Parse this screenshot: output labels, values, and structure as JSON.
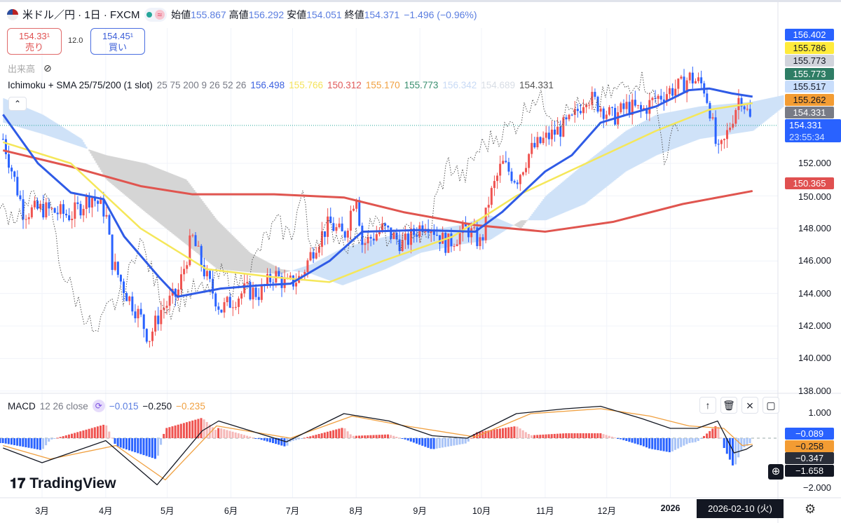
{
  "header": {
    "symbol": "米ドル／円 · 1日 · FXCM",
    "approx_icon": "≈",
    "ohlc": [
      {
        "label": "始値",
        "value": "155.867"
      },
      {
        "label": "高値",
        "value": "156.292"
      },
      {
        "label": "安値",
        "value": "154.051"
      },
      {
        "label": "終値",
        "value": "154.371"
      }
    ],
    "change": "−1.496 (−0.96%)"
  },
  "trade": {
    "sell_price": "154.33¹",
    "sell_label": "売り",
    "spread": "12.0",
    "buy_price": "154.45¹",
    "buy_label": "買い"
  },
  "volume_label": "出来高",
  "indicator": {
    "name": "Ichimoku + SMA 25/75/200 (1 slot)",
    "params": "25 75 200 9 26 52 26",
    "values": [
      {
        "v": "156.498",
        "c": "#3d62e0"
      },
      {
        "v": "155.766",
        "c": "#f5e35a"
      },
      {
        "v": "150.312",
        "c": "#e05a5a"
      },
      {
        "v": "155.170",
        "c": "#f0a040"
      },
      {
        "v": "155.773",
        "c": "#3a8f70"
      },
      {
        "v": "156.342",
        "c": "#c8daf5"
      },
      {
        "v": "154.689",
        "c": "#d8dde5"
      },
      {
        "v": "154.331",
        "c": "#555"
      }
    ]
  },
  "macd": {
    "label": "MACD",
    "params": "12 26 close",
    "values": [
      {
        "v": "−0.015",
        "c": "#5b7ee0"
      },
      {
        "v": "−0.250",
        "c": "#131722"
      },
      {
        "v": "−0.235",
        "c": "#f0a040"
      }
    ],
    "tools": [
      "arrow-up",
      "delete",
      "collapse",
      "maximize"
    ]
  },
  "price_axis": {
    "ticks": [
      "152.000",
      "150.000",
      "148.000",
      "146.000",
      "144.000",
      "142.000",
      "140.000",
      "138.000"
    ],
    "labels": [
      {
        "v": "156.402",
        "bg": "#2962ff",
        "fg": "#fff"
      },
      {
        "v": "155.786",
        "bg": "#ffeb3b",
        "fg": "#131722"
      },
      {
        "v": "155.773",
        "bg": "#d1d4dc",
        "fg": "#131722"
      },
      {
        "v": "155.773",
        "bg": "#2e7d65",
        "fg": "#fff"
      },
      {
        "v": "155.517",
        "bg": "#c8ddfb",
        "fg": "#131722"
      },
      {
        "v": "155.262",
        "bg": "#f39c33",
        "fg": "#131722"
      },
      {
        "v": "154.331",
        "bg": "#787b86",
        "fg": "#fff"
      }
    ],
    "last_price": "154.331",
    "countdown": "23:55:34",
    "sma200_label": "150.365"
  },
  "macd_axis": {
    "ticks": [
      "1.000",
      "−2.000"
    ],
    "labels": [
      {
        "v": "−0.089",
        "bg": "#2962ff",
        "fg": "#fff"
      },
      {
        "v": "−0.258",
        "bg": "#f39c33",
        "fg": "#131722"
      },
      {
        "v": "−0.347",
        "bg": "#2a2e39",
        "fg": "#fff"
      },
      {
        "v": "−1.658",
        "bg": "#131722",
        "fg": "#fff"
      }
    ]
  },
  "time_axis": {
    "months": [
      {
        "d": "2025-03-01",
        "t": "3月"
      },
      {
        "d": "2025-04-01",
        "t": "4月"
      },
      {
        "d": "2025-05-01",
        "t": "5月"
      },
      {
        "d": "2025-06-01",
        "t": "6月"
      },
      {
        "d": "2025-07-01",
        "t": "7月"
      },
      {
        "d": "2025-08-01",
        "t": "8月"
      },
      {
        "d": "2025-09-01",
        "t": "9月"
      },
      {
        "d": "2025-10-01",
        "t": "10月"
      },
      {
        "d": "2025-11-01",
        "t": "11月"
      },
      {
        "d": "2025-12-01",
        "t": "12月"
      },
      {
        "d": "2026-01-01",
        "t": "2026"
      }
    ],
    "cursor_date": "2026-02-10 (火)"
  },
  "logo": "TradingView",
  "colors": {
    "up": "#ef5350",
    "down": "#2962ff",
    "sma25": "#2f5be6",
    "sma75": "#f5e75a",
    "sma200": "#e0554f",
    "cloud_up": "#cfe2f8",
    "cloud_down": "#d5d5d5"
  },
  "chart_data": {
    "type": "candlestick",
    "close_path": [
      [
        "2025-02-10",
        153.5
      ],
      [
        "2025-02-20",
        149
      ],
      [
        "2025-03-01",
        149.2
      ],
      [
        "2025-03-15",
        148.8
      ],
      [
        "2025-03-25",
        150
      ],
      [
        "2025-04-01",
        149
      ],
      [
        "2025-04-04",
        146
      ],
      [
        "2025-04-11",
        144
      ],
      [
        "2025-04-18",
        142.5
      ],
      [
        "2025-04-22",
        141.2
      ],
      [
        "2025-04-28",
        143
      ],
      [
        "2025-05-06",
        144
      ],
      [
        "2025-05-13",
        147.5
      ],
      [
        "2025-05-20",
        145
      ],
      [
        "2025-05-27",
        143
      ],
      [
        "2025-06-01",
        143.5
      ],
      [
        "2025-06-08",
        144.2
      ],
      [
        "2025-06-15",
        144
      ],
      [
        "2025-06-22",
        145.2
      ],
      [
        "2025-06-28",
        144.5
      ],
      [
        "2025-07-05",
        145
      ],
      [
        "2025-07-12",
        147
      ],
      [
        "2025-07-19",
        148.3
      ],
      [
        "2025-07-26",
        147.5
      ],
      [
        "2025-08-01",
        150.3
      ],
      [
        "2025-08-04",
        147
      ],
      [
        "2025-08-14",
        148
      ],
      [
        "2025-08-24",
        147
      ],
      [
        "2025-09-04",
        148.5
      ],
      [
        "2025-09-14",
        147
      ],
      [
        "2025-09-24",
        148
      ],
      [
        "2025-10-01",
        147
      ],
      [
        "2025-10-04",
        149.5
      ],
      [
        "2025-10-11",
        152
      ],
      [
        "2025-10-18",
        151
      ],
      [
        "2025-10-25",
        152.8
      ],
      [
        "2025-11-01",
        153.5
      ],
      [
        "2025-11-07",
        154
      ],
      [
        "2025-11-14",
        154.6
      ],
      [
        "2025-11-21",
        156.2
      ],
      [
        "2025-11-28",
        155.5
      ],
      [
        "2025-12-04",
        154.8
      ],
      [
        "2025-12-11",
        155.5
      ],
      [
        "2025-12-18",
        155.2
      ],
      [
        "2025-12-25",
        156
      ],
      [
        "2026-01-01",
        156.5
      ],
      [
        "2026-01-07",
        156.8
      ],
      [
        "2026-01-10",
        157.3
      ],
      [
        "2026-01-17",
        156.8
      ],
      [
        "2026-01-20",
        155.5
      ],
      [
        "2026-01-24",
        152.5
      ],
      [
        "2026-01-27",
        153.2
      ],
      [
        "2026-02-04",
        156.3
      ],
      [
        "2026-02-10",
        154.3
      ]
    ],
    "sma25": [
      [
        "2025-02-10",
        155
      ],
      [
        "2025-02-27",
        152
      ],
      [
        "2025-03-15",
        150.2
      ],
      [
        "2025-03-31",
        149.8
      ],
      [
        "2025-04-10",
        147.5
      ],
      [
        "2025-04-27",
        145
      ],
      [
        "2025-05-06",
        143.8
      ],
      [
        "2025-05-27",
        144.3
      ],
      [
        "2025-06-15",
        144.5
      ],
      [
        "2025-06-30",
        144.6
      ],
      [
        "2025-07-19",
        146
      ],
      [
        "2025-08-04",
        147.8
      ],
      [
        "2025-09-01",
        147.9
      ],
      [
        "2025-09-28",
        147.8
      ],
      [
        "2025-10-11",
        149
      ],
      [
        "2025-11-01",
        151.5
      ],
      [
        "2025-11-14",
        152.5
      ],
      [
        "2025-11-28",
        154.5
      ],
      [
        "2025-12-11",
        155
      ],
      [
        "2025-12-25",
        155.5
      ],
      [
        "2026-01-10",
        156.5
      ],
      [
        "2026-01-20",
        156.6
      ],
      [
        "2026-01-31",
        156.3
      ],
      [
        "2026-02-10",
        156.1
      ]
    ],
    "sma75": [
      [
        "2025-02-10",
        153.3
      ],
      [
        "2025-03-15",
        152
      ],
      [
        "2025-04-18",
        148
      ],
      [
        "2025-05-20",
        145.5
      ],
      [
        "2025-06-22",
        145
      ],
      [
        "2025-07-19",
        144.7
      ],
      [
        "2025-08-14",
        146
      ],
      [
        "2025-09-17",
        147.5
      ],
      [
        "2025-10-18",
        150
      ],
      [
        "2025-11-21",
        152
      ],
      [
        "2025-12-25",
        154
      ],
      [
        "2026-01-20",
        155.3
      ],
      [
        "2026-02-10",
        155.7
      ]
    ],
    "sma200": [
      [
        "2025-02-10",
        152.8
      ],
      [
        "2025-03-15",
        151.8
      ],
      [
        "2025-04-18",
        150.6
      ],
      [
        "2025-05-13",
        150.1
      ],
      [
        "2025-06-22",
        150.1
      ],
      [
        "2025-07-26",
        149.9
      ],
      [
        "2025-08-24",
        149
      ],
      [
        "2025-09-28",
        148.2
      ],
      [
        "2025-11-01",
        147.8
      ],
      [
        "2025-12-04",
        148.4
      ],
      [
        "2026-01-07",
        149.5
      ],
      [
        "2026-02-10",
        150.3
      ]
    ],
    "cloud": [
      [
        "2025-02-10",
        156,
        154.5
      ],
      [
        "2025-03-01",
        155,
        153.8
      ],
      [
        "2025-03-20",
        153.5,
        153
      ],
      [
        "2025-04-01",
        151,
        152.5
      ],
      [
        "2025-04-20",
        149,
        152
      ],
      [
        "2025-05-10",
        147,
        151
      ],
      [
        "2025-05-25",
        145.5,
        148.5
      ],
      [
        "2025-06-10",
        145.3,
        146.5
      ],
      [
        "2025-06-25",
        145.2,
        145.5
      ],
      [
        "2025-07-10",
        145.8,
        145.2
      ],
      [
        "2025-07-25",
        146.8,
        144.5
      ],
      [
        "2025-08-15",
        147.5,
        145.5
      ],
      [
        "2025-09-01",
        147.8,
        146.5
      ],
      [
        "2025-09-20",
        148.2,
        147
      ],
      [
        "2025-10-05",
        148.8,
        147.3
      ],
      [
        "2025-10-20",
        148,
        148.5
      ],
      [
        "2025-11-01",
        150,
        148.5
      ],
      [
        "2025-11-20",
        152,
        149.5
      ],
      [
        "2025-12-10",
        154,
        151.5
      ],
      [
        "2025-12-25",
        155,
        152.5
      ],
      [
        "2026-01-15",
        155.5,
        153.5
      ],
      [
        "2026-02-10",
        155.8,
        154
      ],
      [
        "2026-02-25",
        156.2,
        155.5
      ]
    ],
    "macd_line": [
      [
        "2025-02-10",
        -0.4
      ],
      [
        "2025-03-01",
        -1.0
      ],
      [
        "2025-04-01",
        -0.1
      ],
      [
        "2025-04-26",
        -1.9
      ],
      [
        "2025-05-18",
        0.3
      ],
      [
        "2025-05-26",
        0.7
      ],
      [
        "2025-06-28",
        -0.15
      ],
      [
        "2025-07-26",
        1.0
      ],
      [
        "2025-08-17",
        0.7
      ],
      [
        "2025-09-07",
        0.1
      ],
      [
        "2025-09-24",
        0
      ],
      [
        "2025-10-18",
        1.0
      ],
      [
        "2025-11-11",
        1.2
      ],
      [
        "2025-11-28",
        1.3
      ],
      [
        "2025-12-18",
        0.8
      ],
      [
        "2026-01-01",
        0.4
      ],
      [
        "2026-01-14",
        0.4
      ],
      [
        "2026-01-24",
        0.7
      ],
      [
        "2026-02-01",
        -0.6
      ],
      [
        "2026-02-07",
        -0.45
      ],
      [
        "2026-02-10",
        -0.3
      ]
    ],
    "signal_line": [
      [
        "2025-02-10",
        -0.3
      ],
      [
        "2025-03-05",
        -0.85
      ],
      [
        "2025-04-06",
        -0.3
      ],
      [
        "2025-04-30",
        -1.7
      ],
      [
        "2025-05-25",
        0.5
      ],
      [
        "2025-06-30",
        0.0
      ],
      [
        "2025-07-30",
        0.9
      ],
      [
        "2025-08-25",
        0.5
      ],
      [
        "2025-09-28",
        0.05
      ],
      [
        "2025-10-25",
        1.0
      ],
      [
        "2025-11-28",
        1.2
      ],
      [
        "2025-12-22",
        0.9
      ],
      [
        "2026-01-10",
        0.5
      ],
      [
        "2026-01-27",
        0.4
      ],
      [
        "2026-02-05",
        -0.3
      ],
      [
        "2026-02-10",
        -0.25
      ]
    ],
    "price_ylim": [
      137.5,
      158.5
    ],
    "macd_ylim": [
      -2.3,
      1.3
    ]
  }
}
